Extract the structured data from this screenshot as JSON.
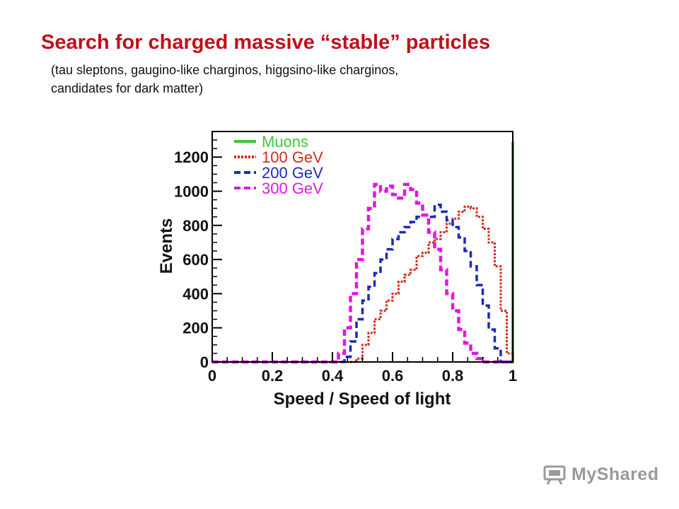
{
  "slide": {
    "title": "Search for charged massive “stable” particles",
    "subtitle_line1": "(tau sleptons, gaugino-like charginos, higgsino-like charginos,",
    "subtitle_line2": "candidates for dark matter)"
  },
  "watermark": {
    "text": "MyShared"
  },
  "chart_data": {
    "type": "histogram",
    "xlabel": "Speed / Speed of light",
    "ylabel": "Events",
    "xlim": [
      0,
      1
    ],
    "ylim": [
      0,
      1350
    ],
    "xticks": [
      0,
      0.2,
      0.4,
      0.6,
      0.8,
      1
    ],
    "xtick_labels": [
      "0",
      "0.2",
      "0.4",
      "0.6",
      "0.8",
      "1"
    ],
    "yticks": [
      0,
      200,
      400,
      600,
      800,
      1000,
      1200
    ],
    "ytick_labels": [
      "0",
      "200",
      "400",
      "600",
      "800",
      "1000",
      "1200"
    ],
    "grid": false,
    "legend_position": "top-left",
    "series": [
      {
        "name": "Muons",
        "color": "#3cc83c",
        "style": "solid",
        "x": [
          0.99,
          1.0
        ],
        "values": [
          0,
          1290
        ]
      },
      {
        "name": "100 GeV",
        "color": "#d42a1e",
        "style": "dotted",
        "x": [
          0,
          0.46,
          0.48,
          0.5,
          0.52,
          0.54,
          0.56,
          0.58,
          0.6,
          0.62,
          0.64,
          0.66,
          0.68,
          0.7,
          0.72,
          0.74,
          0.76,
          0.78,
          0.8,
          0.82,
          0.84,
          0.86,
          0.88,
          0.9,
          0.92,
          0.94,
          0.96,
          0.98,
          1.0
        ],
        "values": [
          0,
          0,
          20,
          100,
          170,
          250,
          300,
          360,
          400,
          470,
          510,
          540,
          620,
          640,
          700,
          720,
          760,
          810,
          840,
          880,
          910,
          900,
          850,
          780,
          700,
          560,
          300,
          50,
          0
        ]
      },
      {
        "name": "200 GeV",
        "color": "#1c2ab8",
        "style": "dashed",
        "x": [
          0,
          0.42,
          0.44,
          0.46,
          0.48,
          0.5,
          0.52,
          0.54,
          0.56,
          0.58,
          0.6,
          0.62,
          0.64,
          0.66,
          0.68,
          0.7,
          0.72,
          0.74,
          0.76,
          0.78,
          0.8,
          0.82,
          0.84,
          0.86,
          0.88,
          0.9,
          0.92,
          0.94,
          0.96
        ],
        "values": [
          0,
          0,
          30,
          120,
          250,
          360,
          440,
          520,
          600,
          660,
          720,
          760,
          790,
          820,
          850,
          860,
          850,
          920,
          880,
          830,
          790,
          730,
          650,
          560,
          450,
          330,
          190,
          80,
          0
        ]
      },
      {
        "name": "300 GeV",
        "color": "#e018e0",
        "style": "dashed",
        "x": [
          0,
          0.4,
          0.42,
          0.44,
          0.46,
          0.48,
          0.5,
          0.52,
          0.54,
          0.56,
          0.58,
          0.6,
          0.62,
          0.64,
          0.66,
          0.68,
          0.7,
          0.72,
          0.74,
          0.76,
          0.78,
          0.8,
          0.82,
          0.84,
          0.86,
          0.88,
          0.9,
          0.92
        ],
        "values": [
          0,
          0,
          50,
          200,
          400,
          600,
          780,
          900,
          1040,
          1000,
          1030,
          980,
          960,
          1040,
          1010,
          930,
          860,
          760,
          660,
          540,
          400,
          300,
          190,
          110,
          50,
          20,
          0,
          0
        ]
      }
    ]
  }
}
